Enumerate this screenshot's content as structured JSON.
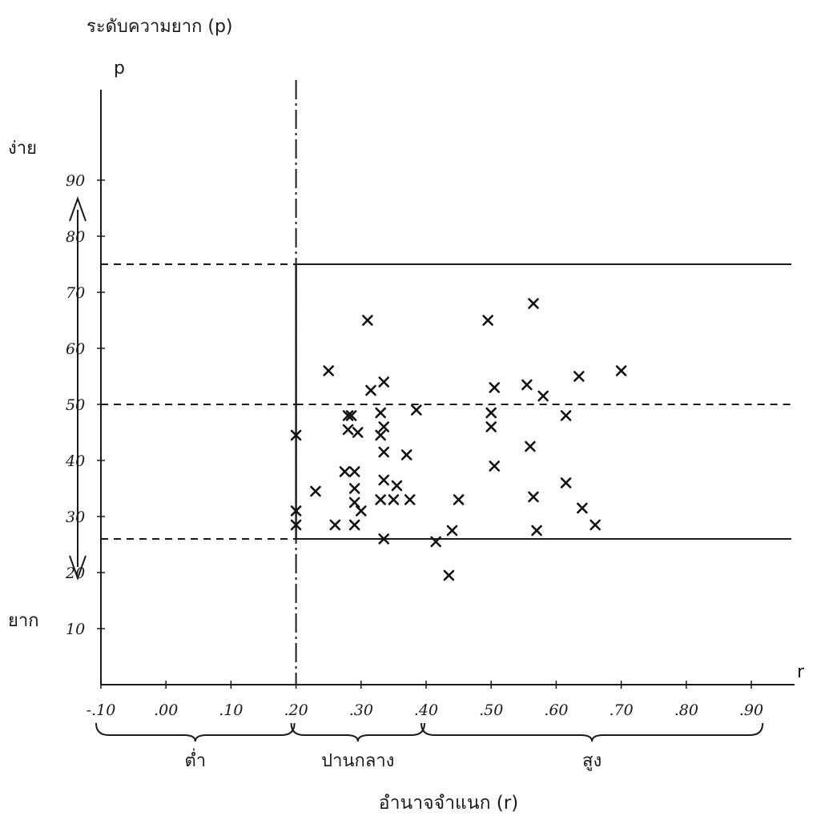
{
  "chart_data": {
    "type": "scatter",
    "title": "ระดับความยาก (p)",
    "y_axis_letter": "p",
    "x_axis_letter": "r",
    "xlabel": "อำนาจจำแนก (r)",
    "ylabel": "ระดับความยาก (p)",
    "y_easy_label": "ง่าย",
    "y_hard_label": "ยาก",
    "xlim": [
      -0.1,
      0.95
    ],
    "ylim": [
      0,
      95
    ],
    "x_ticks": [
      "-.10",
      ".00",
      ".10",
      ".20",
      ".30",
      ".40",
      ".50",
      ".60",
      ".70",
      ".80",
      ".90"
    ],
    "y_ticks": [
      "10",
      "20",
      "30",
      "40",
      "50",
      "60",
      "70",
      "80",
      "90"
    ],
    "x_groups": [
      {
        "label": "ต่ำ",
        "from": -0.1,
        "to": 0.2
      },
      {
        "label": "ปานกลาง",
        "from": 0.2,
        "to": 0.4
      },
      {
        "label": "สูง",
        "from": 0.4,
        "to": 0.92
      }
    ],
    "reference_lines": {
      "p": [
        75,
        50,
        26
      ],
      "r": [
        0.2
      ]
    },
    "grid": false,
    "points": [
      {
        "x": 0.2,
        "y": 44.5
      },
      {
        "x": 0.2,
        "y": 31
      },
      {
        "x": 0.2,
        "y": 28.5
      },
      {
        "x": 0.25,
        "y": 56
      },
      {
        "x": 0.23,
        "y": 34.5
      },
      {
        "x": 0.26,
        "y": 28.5
      },
      {
        "x": 0.28,
        "y": 48
      },
      {
        "x": 0.285,
        "y": 48
      },
      {
        "x": 0.28,
        "y": 45.5
      },
      {
        "x": 0.295,
        "y": 45
      },
      {
        "x": 0.275,
        "y": 38
      },
      {
        "x": 0.29,
        "y": 38
      },
      {
        "x": 0.29,
        "y": 35
      },
      {
        "x": 0.29,
        "y": 32.5
      },
      {
        "x": 0.3,
        "y": 31
      },
      {
        "x": 0.29,
        "y": 28.5
      },
      {
        "x": 0.31,
        "y": 65
      },
      {
        "x": 0.315,
        "y": 52.5
      },
      {
        "x": 0.335,
        "y": 54
      },
      {
        "x": 0.33,
        "y": 48.5
      },
      {
        "x": 0.335,
        "y": 46
      },
      {
        "x": 0.33,
        "y": 44.5
      },
      {
        "x": 0.335,
        "y": 41.5
      },
      {
        "x": 0.335,
        "y": 36.5
      },
      {
        "x": 0.33,
        "y": 33
      },
      {
        "x": 0.35,
        "y": 33
      },
      {
        "x": 0.355,
        "y": 35.5
      },
      {
        "x": 0.37,
        "y": 41
      },
      {
        "x": 0.375,
        "y": 33
      },
      {
        "x": 0.335,
        "y": 26
      },
      {
        "x": 0.385,
        "y": 49
      },
      {
        "x": 0.415,
        "y": 25.5
      },
      {
        "x": 0.44,
        "y": 27.5
      },
      {
        "x": 0.45,
        "y": 33
      },
      {
        "x": 0.495,
        "y": 65
      },
      {
        "x": 0.505,
        "y": 53
      },
      {
        "x": 0.5,
        "y": 48.5
      },
      {
        "x": 0.5,
        "y": 46
      },
      {
        "x": 0.505,
        "y": 39
      },
      {
        "x": 0.555,
        "y": 53.5
      },
      {
        "x": 0.56,
        "y": 42.5
      },
      {
        "x": 0.565,
        "y": 68
      },
      {
        "x": 0.565,
        "y": 33.5
      },
      {
        "x": 0.57,
        "y": 27.5
      },
      {
        "x": 0.58,
        "y": 51.5
      },
      {
        "x": 0.615,
        "y": 48
      },
      {
        "x": 0.615,
        "y": 36
      },
      {
        "x": 0.635,
        "y": 55
      },
      {
        "x": 0.64,
        "y": 31.5
      },
      {
        "x": 0.66,
        "y": 28.5
      },
      {
        "x": 0.7,
        "y": 56
      },
      {
        "x": 0.435,
        "y": 19.5
      }
    ]
  }
}
